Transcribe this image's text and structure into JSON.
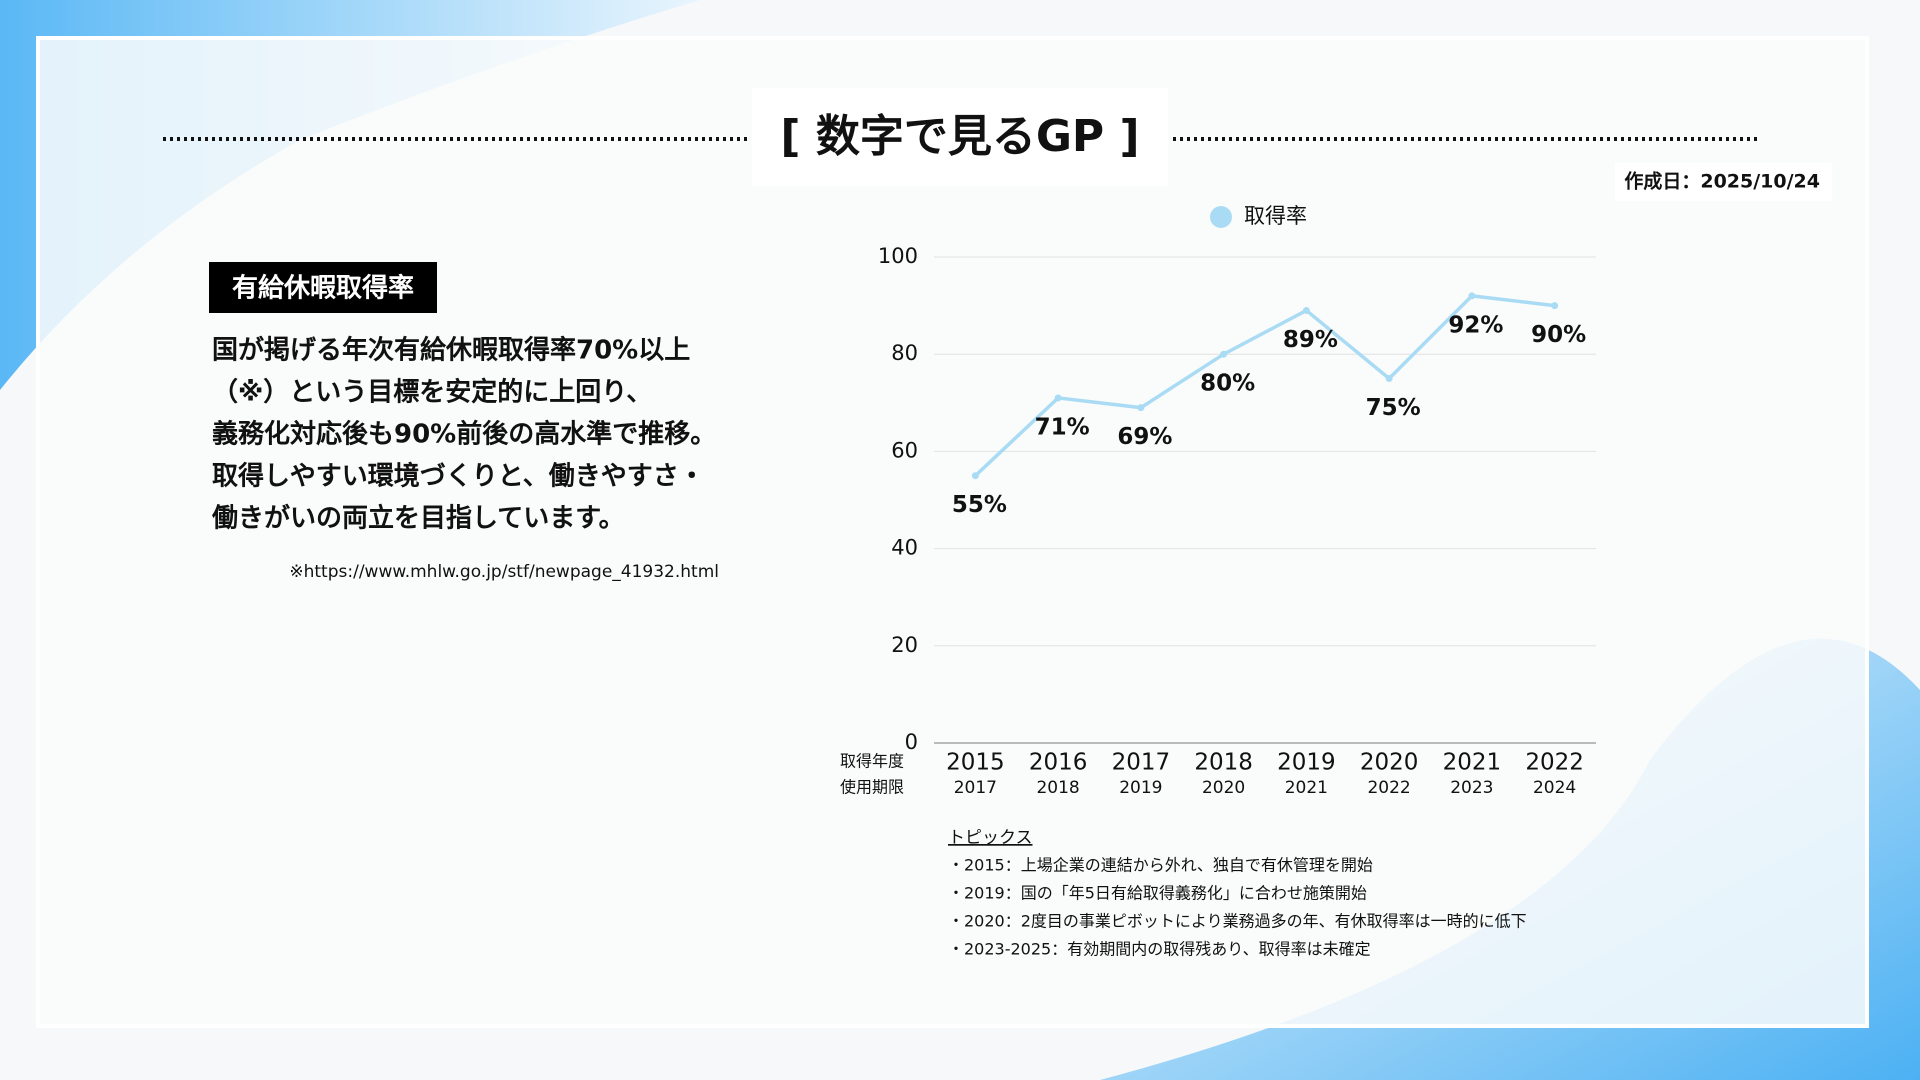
{
  "header": {
    "title": "[ 数字で見るGP ]",
    "date": "作成日：2025/10/24"
  },
  "summary": {
    "label": "有給休暇取得率",
    "lines": [
      "国が掲げる年次有給休暇取得率70%以上",
      "（※）という目標を安定的に上回り、",
      "義務化対応後も90%前後の高水準で推移。",
      "取得しやすい環境づくりと、働きやすさ・",
      "働きがいの両立を目指しています。"
    ],
    "note": "※https://www.mhlw.go.jp/stf/newpage_41932.html"
  },
  "chart_data": {
    "type": "line",
    "categories": [
      "2015",
      "2016",
      "2017",
      "2018",
      "2019",
      "2020",
      "2021",
      "2022"
    ],
    "sub_categories": [
      "2017",
      "2018",
      "2019",
      "2020",
      "2021",
      "2022",
      "2023",
      "2024"
    ],
    "row_labels": [
      "取得年度",
      "使用期限"
    ],
    "series": [
      {
        "name": "取得率",
        "color": "#a9dcf4",
        "values": [
          55,
          71,
          69,
          80,
          89,
          75,
          92,
          90
        ],
        "value_labels": [
          "55%",
          "71%",
          "69%",
          "80%",
          "89%",
          "75%",
          "92%",
          "90%"
        ]
      }
    ],
    "ylim": [
      0,
      100
    ],
    "yticks": [
      0,
      20,
      40,
      60,
      80,
      100
    ],
    "grid": true,
    "legend": "top"
  },
  "topics": {
    "title": "トピックス",
    "items": [
      "・2015：上場企業の連結から外れ、独自で有休管理を開始",
      "・2019：国の「年5日有給取得義務化」に合わせ施策開始",
      "・2020：2度目の事業ピボットにより業務過多の年、有休取得率は一時的に低下",
      "・2023-2025：有効期間内の取得残あり、取得率は未確定"
    ]
  }
}
